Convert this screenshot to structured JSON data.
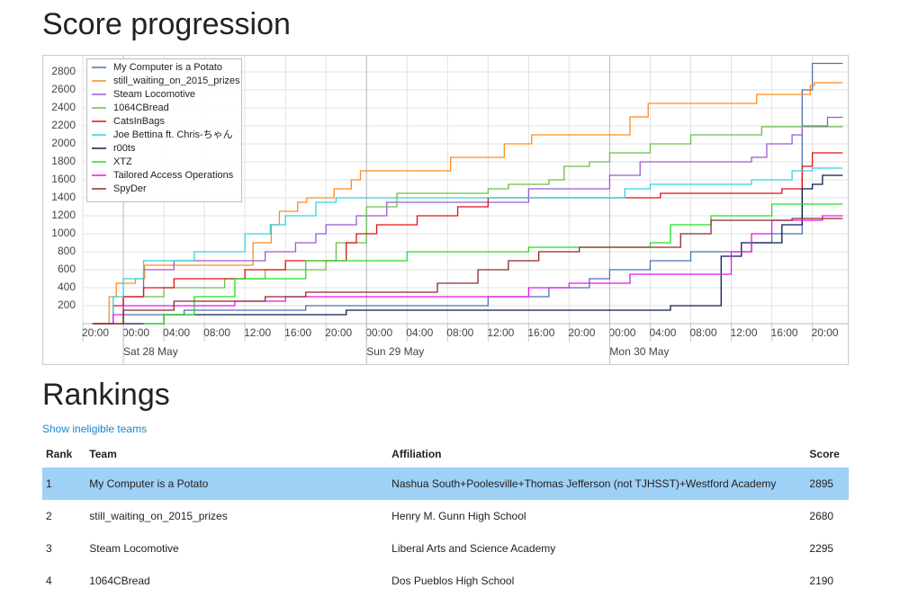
{
  "page": {
    "title": "Score progression",
    "rankings_title": "Rankings",
    "link": "Show ineligible teams"
  },
  "chart_data": {
    "type": "step-line",
    "xlim": [
      -4,
      71.5
    ],
    "ylim": [
      0,
      2980
    ],
    "xticks": [
      {
        "value": -4,
        "label": "20:00"
      },
      {
        "value": 0,
        "label": "00:00"
      },
      {
        "value": 4,
        "label": "04:00"
      },
      {
        "value": 8,
        "label": "08:00"
      },
      {
        "value": 12,
        "label": "12:00"
      },
      {
        "value": 16,
        "label": "16:00"
      },
      {
        "value": 20,
        "label": "20:00"
      },
      {
        "value": 24,
        "label": "00:00"
      },
      {
        "value": 28,
        "label": "04:00"
      },
      {
        "value": 32,
        "label": "08:00"
      },
      {
        "value": 36,
        "label": "12:00"
      },
      {
        "value": 40,
        "label": "16:00"
      },
      {
        "value": 44,
        "label": "20:00"
      },
      {
        "value": 48,
        "label": "00:00"
      },
      {
        "value": 52,
        "label": "04:00"
      },
      {
        "value": 56,
        "label": "08:00"
      },
      {
        "value": 60,
        "label": "12:00"
      },
      {
        "value": 64,
        "label": "16:00"
      },
      {
        "value": 68,
        "label": "20:00"
      }
    ],
    "date_ticks": [
      {
        "value": 0,
        "label": "Sat 28 May"
      },
      {
        "value": 24,
        "label": "Sun 29 May"
      },
      {
        "value": 48,
        "label": "Mon 30 May"
      }
    ],
    "yticks": [
      200,
      400,
      600,
      800,
      1000,
      1200,
      1400,
      1600,
      1800,
      2000,
      2200,
      2400,
      2600,
      2800
    ],
    "grid": true,
    "series": [
      {
        "name": "My Computer is a Potato",
        "color": "#4a72b0",
        "x": [
          -3,
          0,
          6,
          18,
          36,
          42,
          46,
          48,
          52,
          56,
          62,
          64,
          67,
          68,
          71
        ],
        "values": [
          0,
          100,
          150,
          200,
          300,
          400,
          500,
          600,
          700,
          800,
          900,
          1000,
          2600,
          2895,
          2895
        ]
      },
      {
        "name": "still_waiting_on_2015_prizes",
        "color": "#ff8c1a",
        "x": [
          -3.2,
          -1.4,
          -0.7,
          1.2,
          2.1,
          12.8,
          14.6,
          15.4,
          17.2,
          18.1,
          20.8,
          22.5,
          23.4,
          32.3,
          37.6,
          40.3,
          50,
          51.8,
          62.5,
          67.8,
          68.2,
          71
        ],
        "values": [
          0,
          300,
          450,
          500,
          650,
          900,
          1100,
          1250,
          1350,
          1400,
          1500,
          1600,
          1700,
          1850,
          2000,
          2100,
          2300,
          2450,
          2550,
          2650,
          2680,
          2680
        ]
      },
      {
        "name": "Steam Locomotive",
        "color": "#9b59d0",
        "x": [
          -3,
          0,
          2,
          5,
          14,
          17,
          19,
          20,
          23,
          26,
          40,
          48,
          51,
          62,
          63.5,
          66,
          67,
          69.5,
          71
        ],
        "values": [
          0,
          300,
          600,
          700,
          800,
          900,
          1000,
          1100,
          1200,
          1350,
          1500,
          1650,
          1800,
          1850,
          2000,
          2100,
          2200,
          2295,
          2295
        ]
      },
      {
        "name": "1064CBread",
        "color": "#6abf4b",
        "x": [
          -3,
          0,
          4,
          10,
          14,
          20,
          21,
          24,
          27,
          36,
          38,
          42,
          43.5,
          46,
          48,
          52,
          56,
          63,
          71
        ],
        "values": [
          0,
          300,
          400,
          500,
          600,
          700,
          900,
          1300,
          1450,
          1500,
          1550,
          1600,
          1750,
          1800,
          1900,
          2000,
          2100,
          2190,
          2190
        ]
      },
      {
        "name": "CatsInBags",
        "color": "#e01010",
        "x": [
          -3,
          -1,
          0,
          2,
          5,
          12,
          16,
          22,
          23,
          25,
          29,
          33,
          36,
          53,
          65,
          67,
          68,
          71
        ],
        "values": [
          0,
          200,
          300,
          400,
          500,
          600,
          700,
          900,
          1000,
          1100,
          1200,
          1300,
          1400,
          1450,
          1500,
          1750,
          1900,
          1900
        ]
      },
      {
        "name": "Joe Bettina ft. Chris-ちゃん",
        "color": "#33d0e0",
        "x": [
          -3,
          -1,
          0,
          2,
          7,
          12,
          14.5,
          16,
          19,
          21,
          49.5,
          52,
          62,
          66,
          68,
          71
        ],
        "values": [
          0,
          300,
          500,
          700,
          800,
          1000,
          1100,
          1200,
          1350,
          1400,
          1500,
          1550,
          1600,
          1700,
          1730,
          1730
        ]
      },
      {
        "name": "r00ts",
        "color": "#0a1a50",
        "x": [
          0,
          4,
          22,
          54,
          59,
          61,
          65,
          67,
          68,
          69,
          71
        ],
        "values": [
          0,
          100,
          150,
          200,
          750,
          900,
          1100,
          1500,
          1550,
          1650,
          1650
        ]
      },
      {
        "name": "XTZ",
        "color": "#22dd22",
        "x": [
          2,
          4,
          7,
          11,
          18,
          28,
          40,
          52,
          54,
          58,
          64,
          71
        ],
        "values": [
          0,
          100,
          300,
          500,
          700,
          800,
          850,
          900,
          1100,
          1200,
          1330,
          1330
        ]
      },
      {
        "name": "Tailored Access Operations",
        "color": "#ee10ee",
        "x": [
          -3,
          -1,
          0,
          11,
          16,
          40,
          44,
          50,
          60,
          62,
          64,
          69,
          71
        ],
        "values": [
          0,
          100,
          200,
          250,
          300,
          400,
          450,
          550,
          800,
          1000,
          1150,
          1200,
          1200
        ]
      },
      {
        "name": "SpyDer",
        "color": "#8b2a2a",
        "x": [
          -3,
          0,
          5,
          14,
          18,
          31,
          35,
          38,
          41,
          45,
          55,
          58,
          66,
          71
        ],
        "values": [
          0,
          150,
          250,
          300,
          350,
          450,
          600,
          700,
          800,
          850,
          1000,
          1150,
          1170,
          1170
        ]
      }
    ]
  },
  "table": {
    "columns": [
      "Rank",
      "Team",
      "Affiliation",
      "Score"
    ],
    "rows": [
      [
        1,
        "My Computer is a Potato",
        "Nashua South+Poolesville+Thomas Jefferson (not TJHSST)+Westford Academy",
        2895
      ],
      [
        2,
        "still_waiting_on_2015_prizes",
        "Henry M. Gunn High School",
        2680
      ],
      [
        3,
        "Steam Locomotive",
        "Liberal Arts and Science Academy",
        2295
      ],
      [
        4,
        "1064CBread",
        "Dos Pueblos High School",
        2190
      ]
    ]
  }
}
